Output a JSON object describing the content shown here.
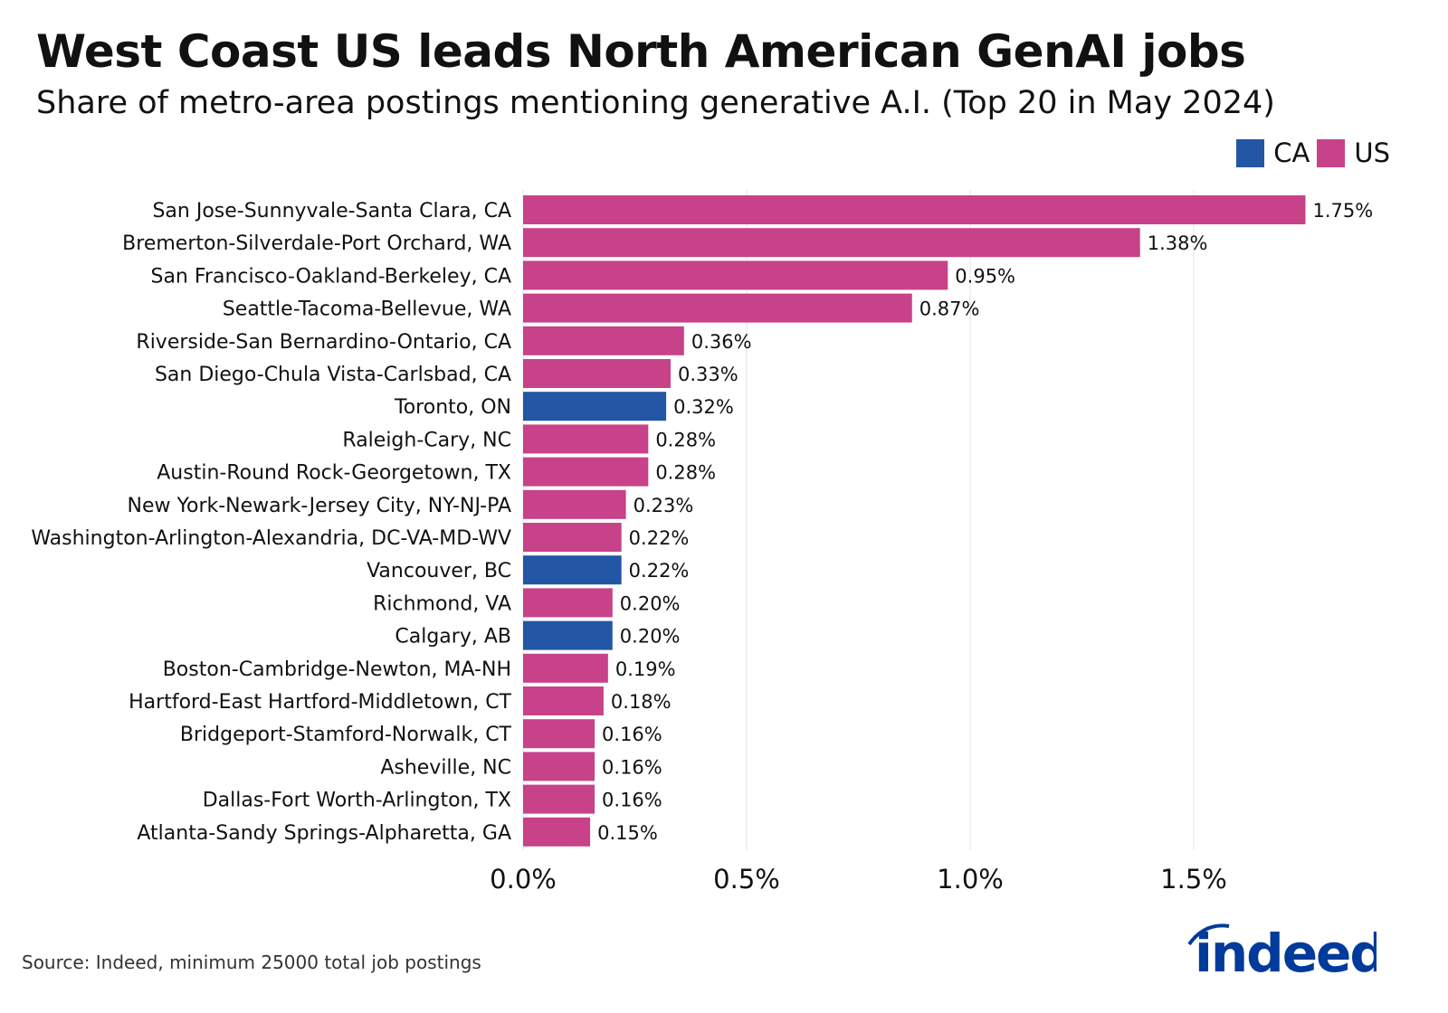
{
  "title": "West Coast US leads North American GenAI jobs",
  "subtitle": "Share of metro-area postings mentioning generative A.I. (Top 20 in May 2024)",
  "source": "Source: Indeed, minimum 25000 total job postings",
  "logo": "indeed",
  "colors": {
    "CA": "#2356A4",
    "US": "#C74289",
    "logo": "#003A9B"
  },
  "legend": [
    {
      "label": "CA",
      "key": "CA"
    },
    {
      "label": "US",
      "key": "US"
    }
  ],
  "chart_data": {
    "type": "bar",
    "orientation": "horizontal",
    "xlim": [
      0,
      1.9
    ],
    "xticks": [
      0,
      0.5,
      1.0,
      1.5
    ],
    "xtick_labels": [
      "0.0%",
      "0.5%",
      "1.0%",
      "1.5%"
    ],
    "grid": "vertical",
    "legend_position": "top-right",
    "categories": [
      "San Jose-Sunnyvale-Santa Clara, CA",
      "Bremerton-Silverdale-Port Orchard, WA",
      "San Francisco-Oakland-Berkeley, CA",
      "Seattle-Tacoma-Bellevue, WA",
      "Riverside-San Bernardino-Ontario, CA",
      "San Diego-Chula Vista-Carlsbad, CA",
      "Toronto, ON",
      "Raleigh-Cary, NC",
      "Austin-Round Rock-Georgetown, TX",
      "New York-Newark-Jersey City, NY-NJ-PA",
      "Washington-Arlington-Alexandria, DC-VA-MD-WV",
      "Vancouver, BC",
      "Richmond, VA",
      "Calgary, AB",
      "Boston-Cambridge-Newton, MA-NH",
      "Hartford-East Hartford-Middletown, CT",
      "Bridgeport-Stamford-Norwalk, CT",
      "Asheville, NC",
      "Dallas-Fort Worth-Arlington, TX",
      "Atlanta-Sandy Springs-Alpharetta, GA"
    ],
    "values": [
      1.75,
      1.38,
      0.95,
      0.87,
      0.36,
      0.33,
      0.32,
      0.28,
      0.28,
      0.23,
      0.22,
      0.22,
      0.2,
      0.2,
      0.19,
      0.18,
      0.16,
      0.16,
      0.16,
      0.15
    ],
    "labels": [
      "1.75%",
      "1.38%",
      "0.95%",
      "0.87%",
      "0.36%",
      "0.33%",
      "0.32%",
      "0.28%",
      "0.28%",
      "0.23%",
      "0.22%",
      "0.22%",
      "0.20%",
      "0.20%",
      "0.19%",
      "0.18%",
      "0.16%",
      "0.16%",
      "0.16%",
      "0.15%"
    ],
    "country": [
      "US",
      "US",
      "US",
      "US",
      "US",
      "US",
      "CA",
      "US",
      "US",
      "US",
      "US",
      "CA",
      "US",
      "CA",
      "US",
      "US",
      "US",
      "US",
      "US",
      "US"
    ]
  }
}
